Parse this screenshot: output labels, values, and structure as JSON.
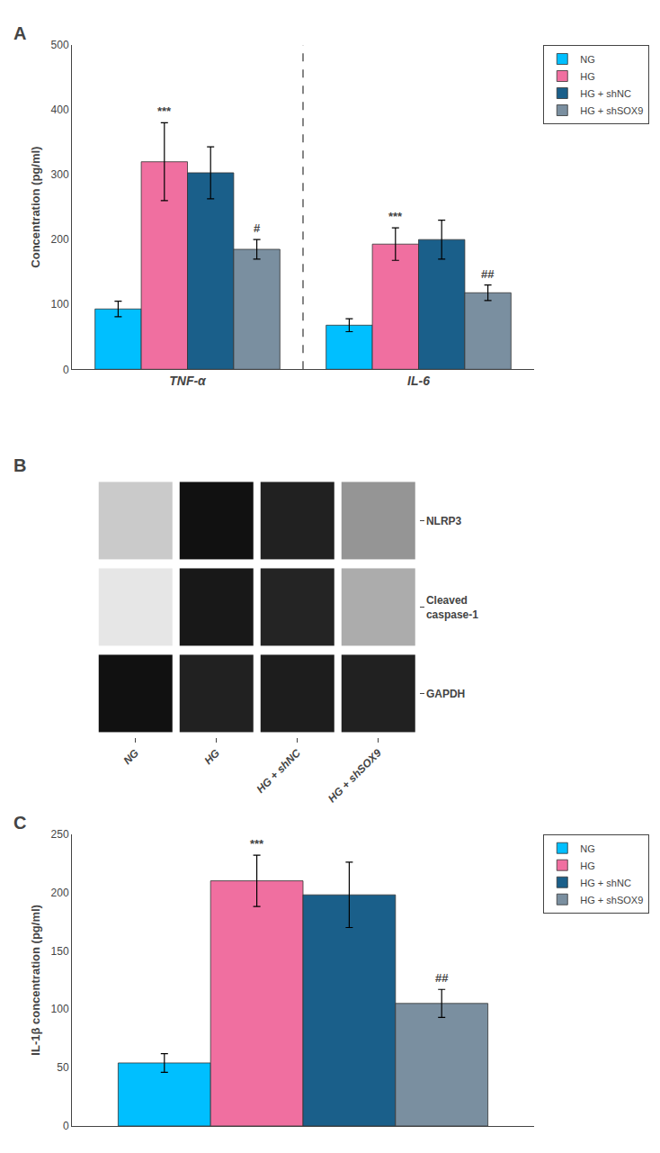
{
  "chart_data": [
    {
      "type": "bar",
      "title": "A",
      "categories": [
        "TNF-α",
        "IL-6"
      ],
      "series": [
        {
          "name": "NG",
          "color": "#00BFFF",
          "values": [
            93,
            68
          ],
          "errors": [
            12,
            10
          ]
        },
        {
          "name": "HG",
          "color": "#F06FA0",
          "values": [
            320,
            193
          ],
          "errors": [
            60,
            25
          ],
          "annotations": [
            "***",
            "***"
          ]
        },
        {
          "name": "HG + shNC",
          "color": "#1A5F8A",
          "values": [
            303,
            200
          ],
          "errors": [
            40,
            30
          ]
        },
        {
          "name": "HG + shSOX9",
          "color": "#7A8FA0",
          "values": [
            185,
            118
          ],
          "errors": [
            15,
            12
          ],
          "annotations": [
            "#",
            "##"
          ]
        }
      ],
      "ylabel": "Concentration (pg/ml)",
      "ylim": [
        0,
        500
      ],
      "yticks": [
        0,
        100,
        200,
        300,
        400,
        500
      ],
      "grid": false,
      "legend": "upper right"
    },
    {
      "type": "heatmap",
      "title": "B",
      "categories": [
        "NG",
        "HG",
        "HG + shNC",
        "HG + shSOX9"
      ],
      "series": [
        {
          "name": "NLRP3",
          "values": [
            0.15,
            0.95,
            0.88,
            0.38
          ]
        },
        {
          "name": "Cleaved\ncaspase-1",
          "values": [
            0.03,
            0.92,
            0.87,
            0.28
          ]
        },
        {
          "name": "GAPDH",
          "values": [
            0.95,
            0.88,
            0.9,
            0.88
          ]
        }
      ]
    },
    {
      "type": "bar",
      "title": "C",
      "categories": [
        null
      ],
      "series": [
        {
          "name": "NG",
          "color": "#00BFFF",
          "values": [
            54
          ],
          "errors": [
            8
          ]
        },
        {
          "name": "HG",
          "color": "#F06FA0",
          "values": [
            210
          ],
          "errors": [
            22
          ],
          "annotations": [
            "***"
          ]
        },
        {
          "name": "HG + shNC",
          "color": "#1A5F8A",
          "values": [
            198
          ],
          "errors": [
            28
          ]
        },
        {
          "name": "HG + shSOX9",
          "color": "#7A8FA0",
          "values": [
            105
          ],
          "errors": [
            12
          ],
          "annotations": [
            "##"
          ]
        }
      ],
      "ylabel": "IL-1β concentration (pg/ml)",
      "ylim": [
        0,
        250
      ],
      "yticks": [
        0,
        50,
        100,
        150,
        200,
        250
      ],
      "grid": false,
      "legend": "upper right"
    }
  ]
}
